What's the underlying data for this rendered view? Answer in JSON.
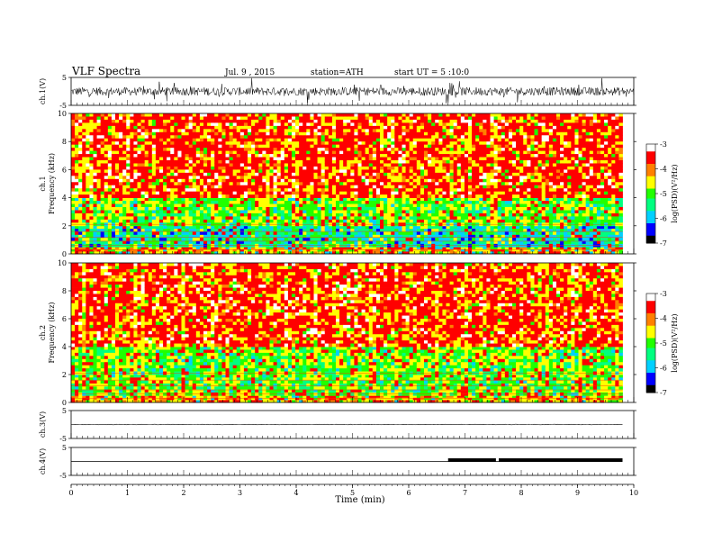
{
  "header": {
    "title": "VLF  Spectra",
    "date": "Jul.  9  , 2015",
    "station": "station=ATH",
    "start": "start  UT  =   5  :10:0"
  },
  "colors": {
    "colormap": [
      "#000000",
      "#0000ff",
      "#00d0ff",
      "#00ff80",
      "#20ff00",
      "#ffff00",
      "#ff8000",
      "#ff0000",
      "#ffffff"
    ],
    "trace": "#000000",
    "background": "#ffffff"
  },
  "chart_data": [
    {
      "type": "line",
      "name": "ch1-waveform",
      "ylabel": "ch.1(V)",
      "ylim": [
        -5,
        5
      ],
      "yticks": [
        "5",
        "-5"
      ],
      "xlim": [
        0,
        10
      ],
      "mean": 0,
      "amplitude": 1.5
    },
    {
      "type": "heatmap",
      "name": "ch1-spectrogram",
      "ylabel_ch": "ch.1",
      "ylabel": "Frequency  (kHz)",
      "ylim": [
        0,
        10
      ],
      "yticks": [
        "0",
        "2",
        "4",
        "6",
        "8",
        "10"
      ],
      "xlim": [
        0,
        9.8
      ],
      "bands": [
        {
          "from": 0,
          "to": 0.5,
          "level": "yellow-red"
        },
        {
          "from": 0.5,
          "to": 2,
          "level": "cyan-green"
        },
        {
          "from": 2,
          "to": 4,
          "level": "green-yellow"
        },
        {
          "from": 4,
          "to": 10,
          "level": "red-yellow"
        }
      ],
      "colorbar": {
        "label": "log(PSD)(V²/Hz)",
        "ticks": [
          "-3",
          "-4",
          "-5",
          "-6",
          "-7"
        ],
        "range": [
          -7,
          -3
        ]
      }
    },
    {
      "type": "heatmap",
      "name": "ch2-spectrogram",
      "ylabel_ch": "ch.2",
      "ylabel": "Frequency  (kHz)",
      "ylim": [
        0,
        10
      ],
      "yticks": [
        "0",
        "2",
        "4",
        "6",
        "8",
        "10"
      ],
      "xlim": [
        0,
        9.8
      ],
      "bands": [
        {
          "from": 0,
          "to": 0.5,
          "level": "yellow-red"
        },
        {
          "from": 0.5,
          "to": 2,
          "level": "green-yellow"
        },
        {
          "from": 2,
          "to": 4,
          "level": "green-yellow"
        },
        {
          "from": 4,
          "to": 10,
          "level": "red-yellow"
        }
      ],
      "colorbar": {
        "label": "log(PSD)(V²/Hz)",
        "ticks": [
          "-3",
          "-4",
          "-5",
          "-6",
          "-7"
        ],
        "range": [
          -7,
          -3
        ]
      }
    },
    {
      "type": "line",
      "name": "ch3-waveform",
      "ylabel": "ch.3(V)",
      "ylim": [
        -5,
        5
      ],
      "yticks": [
        "5",
        "-5"
      ],
      "xlim": [
        0,
        9.8
      ],
      "mean": 0,
      "amplitude": 0.1
    },
    {
      "type": "line",
      "name": "ch4-waveform",
      "ylabel": "ch.4(V)",
      "ylim": [
        -5,
        5
      ],
      "yticks": [
        "5",
        "-5"
      ],
      "xlim": [
        0,
        9.8
      ],
      "mean": 0,
      "high_segments": [
        [
          6.7,
          7.55
        ],
        [
          7.6,
          9.8
        ]
      ],
      "high_level": 0.3
    }
  ],
  "xaxis": {
    "label": "Time  (min)",
    "ticks": [
      "0",
      "1",
      "2",
      "3",
      "4",
      "5",
      "6",
      "7",
      "8",
      "9",
      "10"
    ],
    "range": [
      0,
      10
    ]
  }
}
